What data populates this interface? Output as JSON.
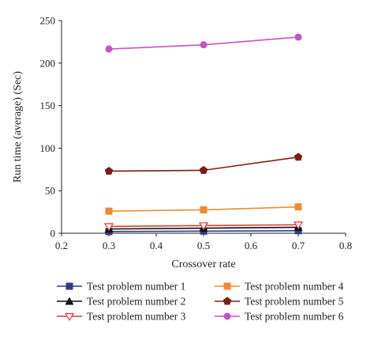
{
  "chart_data": {
    "type": "line",
    "xlabel": "Crossover rate",
    "ylabel": "Run time (average) (Sec)",
    "xlim": [
      0.2,
      0.8
    ],
    "ylim": [
      0,
      250
    ],
    "xticks": [
      "0.2",
      "0.3",
      "0.4",
      "0.5",
      "0.6",
      "0.7",
      "0.8"
    ],
    "yticks": [
      "0",
      "50",
      "100",
      "150",
      "200",
      "250"
    ],
    "x": [
      0.3,
      0.5,
      0.7
    ],
    "grid": false,
    "legend_position": "bottom",
    "series": [
      {
        "name": "Test problem number 1",
        "values": [
          2,
          2.5,
          3
        ],
        "color": "#2e3a8c",
        "marker": "square"
      },
      {
        "name": "Test problem number 2",
        "values": [
          5,
          6,
          7
        ],
        "color": "#111111",
        "marker": "triangle"
      },
      {
        "name": "Test problem number 3",
        "values": [
          8,
          9,
          10
        ],
        "color": "#e03a2a",
        "marker": "triangle-down-open"
      },
      {
        "name": "Test problem number 4",
        "values": [
          26,
          27.5,
          31
        ],
        "color": "#f08a30",
        "marker": "square"
      },
      {
        "name": "Test problem number 5",
        "values": [
          73,
          74,
          89.5
        ],
        "color": "#7b1e14",
        "marker": "pentagon"
      },
      {
        "name": "Test problem number 6",
        "values": [
          216.5,
          221.5,
          230.5
        ],
        "color": "#c653c0",
        "marker": "circle"
      }
    ]
  }
}
